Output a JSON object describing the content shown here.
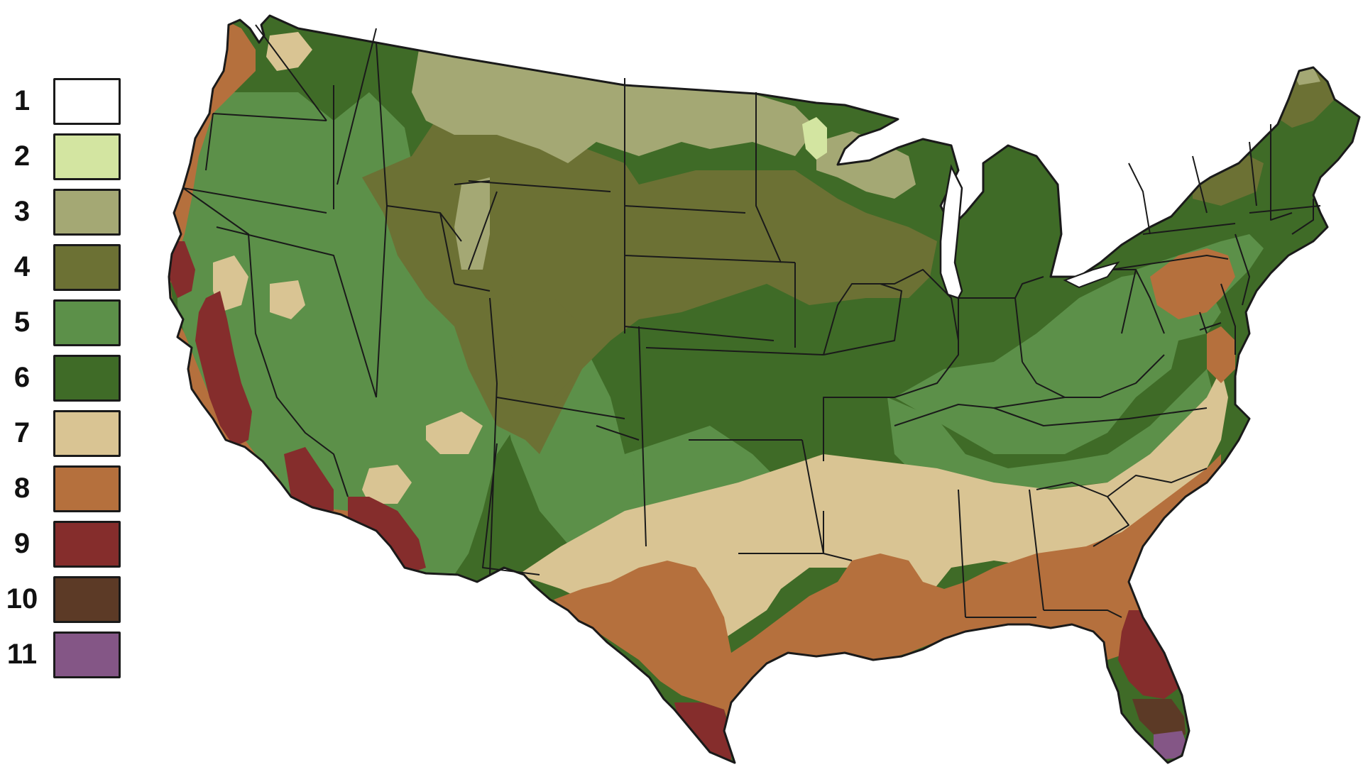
{
  "legend": {
    "zones": [
      {
        "label": "1",
        "color": "#ffffff"
      },
      {
        "label": "2",
        "color": "#d3e5a1"
      },
      {
        "label": "3",
        "color": "#a4a874"
      },
      {
        "label": "4",
        "color": "#6c7134"
      },
      {
        "label": "5",
        "color": "#5c9049"
      },
      {
        "label": "6",
        "color": "#3f6b27"
      },
      {
        "label": "7",
        "color": "#d9c493"
      },
      {
        "label": "8",
        "color": "#b5703d"
      },
      {
        "label": "9",
        "color": "#852d2c"
      },
      {
        "label": "10",
        "color": "#5c3a26"
      },
      {
        "label": "11",
        "color": "#845686"
      }
    ]
  },
  "map": {
    "region": "Contiguous United States",
    "legend_placement": "left"
  }
}
